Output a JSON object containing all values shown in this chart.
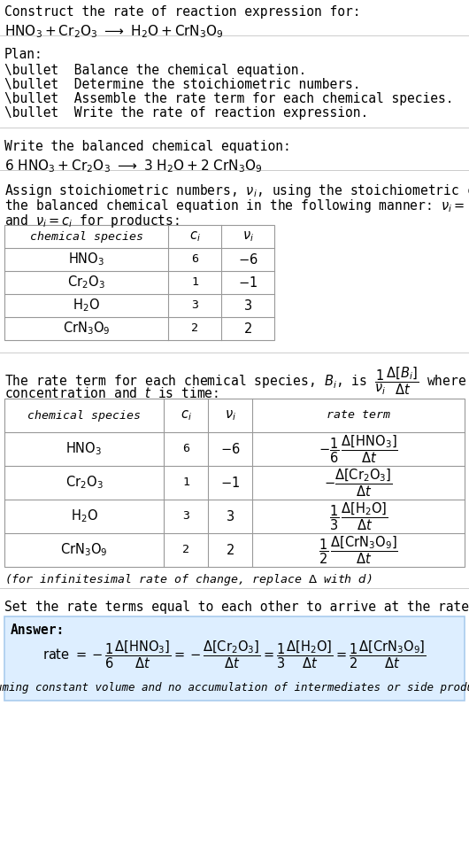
{
  "bg_color": "#ffffff",
  "text_color": "#000000",
  "table_line_color": "#999999",
  "answer_bg_color": "#ddeeff",
  "answer_border_color": "#aaccee",
  "title_line1": "Construct the rate of reaction expression for:",
  "eq1": "$\\mathrm{HNO_3 + Cr_2O_3 \\ \\longrightarrow \\ H_2O + CrN_3O_9}$",
  "plan_header": "Plan:",
  "plan_items": [
    "\\bullet  Balance the chemical equation.",
    "\\bullet  Determine the stoichiometric numbers.",
    "\\bullet  Assemble the rate term for each chemical species.",
    "\\bullet  Write the rate of reaction expression."
  ],
  "balanced_header": "Write the balanced chemical equation:",
  "eq2": "$\\mathrm{6\\ HNO_3 + Cr_2O_3 \\ \\longrightarrow \\ 3\\ H_2O + 2\\ CrN_3O_9}$",
  "stoich_line1": "Assign stoichiometric numbers, $\\nu_i$, using the stoichiometric coefficients, $c_i$, from",
  "stoich_line2": "the balanced chemical equation in the following manner: $\\nu_i = -c_i$ for reactants",
  "stoich_line3": "and $\\nu_i = c_i$ for products:",
  "table1_col_labels": [
    "chemical species",
    "$c_i$",
    "$\\nu_i$"
  ],
  "table1_species": [
    "$\\mathrm{HNO_3}$",
    "$\\mathrm{Cr_2O_3}$",
    "$\\mathrm{H_2O}$",
    "$\\mathrm{CrN_3O_9}$"
  ],
  "table1_ci": [
    "6",
    "1",
    "3",
    "2"
  ],
  "table1_vi": [
    "$-6$",
    "$-1$",
    "$3$",
    "$2$"
  ],
  "rate_line1a": "The rate term for each chemical species, $B_i$, is $\\dfrac{1}{\\nu_i}\\dfrac{\\Delta[B_i]}{\\Delta t}$ where $[B_i]$ is the amount",
  "rate_line2": "concentration and $t$ is time:",
  "table2_col_labels": [
    "chemical species",
    "$c_i$",
    "$\\nu_i$",
    "rate term"
  ],
  "table2_rate_terms": [
    "$-\\dfrac{1}{6}\\,\\dfrac{\\Delta[\\mathrm{HNO_3}]}{\\Delta t}$",
    "$-\\dfrac{\\Delta[\\mathrm{Cr_2O_3}]}{\\Delta t}$",
    "$\\dfrac{1}{3}\\,\\dfrac{\\Delta[\\mathrm{H_2O}]}{\\Delta t}$",
    "$\\dfrac{1}{2}\\,\\dfrac{\\Delta[\\mathrm{CrN_3O_9}]}{\\Delta t}$"
  ],
  "infinitesimal_note": "(for infinitesimal rate of change, replace $\\Delta$ with $d$)",
  "set_equal_line": "Set the rate terms equal to each other to arrive at the rate expression:",
  "answer_label": "Answer:",
  "rate_expr": "rate $= -\\dfrac{1}{6}\\dfrac{\\Delta[\\mathrm{HNO_3}]}{\\Delta t} = -\\dfrac{\\Delta[\\mathrm{Cr_2O_3}]}{\\Delta t} = \\dfrac{1}{3}\\dfrac{\\Delta[\\mathrm{H_2O}]}{\\Delta t} = \\dfrac{1}{2}\\dfrac{\\Delta[\\mathrm{CrN_3O_9}]}{\\Delta t}$",
  "assuming_note": "(assuming constant volume and no accumulation of intermediates or side products)"
}
